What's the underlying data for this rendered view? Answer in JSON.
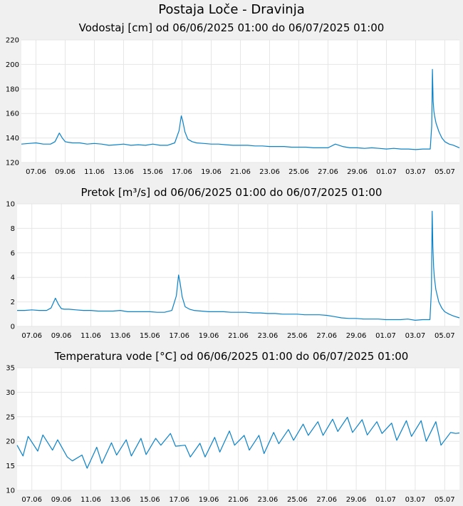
{
  "title": "Postaja Loče - Dravinja",
  "chart_data": [
    {
      "type": "line",
      "title": "Vodostaj [cm] od 06/06/2025 01:00 do 06/07/2025 01:00",
      "x_tick_labels": [
        "07.06",
        "09.06",
        "11.06",
        "13.06",
        "15.06",
        "17.06",
        "19.06",
        "21.06",
        "23.06",
        "25.06",
        "27.06",
        "29.06",
        "01.07",
        "03.07",
        "05.07"
      ],
      "y_ticks": [
        120,
        140,
        160,
        180,
        200,
        220
      ],
      "ylim": [
        120,
        220
      ],
      "xlim": [
        0,
        30
      ],
      "grid": true,
      "color": "#0a82c8",
      "series": [
        {
          "x": [
            0,
            0.5,
            1,
            1.5,
            2,
            2.3,
            2.6,
            2.8,
            3.0,
            3.2,
            3.5,
            4,
            4.5,
            5,
            5.5,
            6,
            6.5,
            7,
            7.5,
            8,
            8.5,
            9,
            9.5,
            10,
            10.5,
            10.8,
            10.95,
            11.05,
            11.2,
            11.4,
            11.7,
            12,
            12.5,
            13,
            13.5,
            14,
            14.5,
            15,
            15.5,
            16,
            16.5,
            17,
            17.5,
            18,
            18.5,
            19,
            19.5,
            20,
            20.5,
            21,
            21.5,
            22,
            22.5,
            23,
            23.5,
            24,
            24.5,
            25,
            25.5,
            26,
            26.5,
            27,
            27.5,
            27.8,
            28,
            28.1,
            28.15,
            28.2,
            28.25,
            28.3,
            28.4,
            28.6,
            28.8,
            29,
            29.3,
            29.6,
            30
          ],
          "y": [
            135,
            135.5,
            136,
            135,
            135,
            137,
            144,
            140,
            137,
            136.5,
            136,
            136,
            135,
            135.5,
            135,
            134,
            134.5,
            135,
            134,
            134.5,
            134,
            135,
            134,
            134,
            136,
            146,
            158,
            154,
            145,
            139,
            137,
            136,
            135.5,
            135,
            135,
            134.5,
            134,
            134,
            134,
            133.5,
            133.5,
            133,
            133,
            133,
            132.5,
            132.5,
            132.5,
            132,
            132,
            132,
            135,
            133,
            132,
            132,
            131.5,
            132,
            131.5,
            131,
            131.5,
            131,
            131,
            130.5,
            131,
            131,
            131,
            150,
            196,
            170,
            162,
            158,
            152,
            145,
            140,
            137,
            135,
            134,
            132
          ]
        }
      ]
    },
    {
      "type": "line",
      "title": "Pretok [m³/s] od 06/06/2025 01:00 do 06/07/2025 01:00",
      "x_tick_labels": [
        "07.06",
        "09.06",
        "11.06",
        "13.06",
        "15.06",
        "17.06",
        "19.06",
        "21.06",
        "23.06",
        "25.06",
        "27.06",
        "29.06",
        "01.07",
        "03.07",
        "05.07"
      ],
      "y_ticks": [
        0,
        2,
        4,
        6,
        8,
        10
      ],
      "ylim": [
        0,
        10
      ],
      "xlim": [
        0,
        30
      ],
      "grid": true,
      "color": "#0a82c8",
      "series": [
        {
          "x": [
            0,
            0.5,
            1,
            1.5,
            2,
            2.3,
            2.6,
            2.8,
            3.0,
            3.2,
            3.5,
            4,
            4.5,
            5,
            5.5,
            6,
            6.5,
            7,
            7.5,
            8,
            8.5,
            9,
            9.5,
            10,
            10.5,
            10.8,
            10.95,
            11.05,
            11.2,
            11.4,
            11.7,
            12,
            12.5,
            13,
            13.5,
            14,
            14.5,
            15,
            15.5,
            16,
            16.5,
            17,
            17.5,
            18,
            18.5,
            19,
            19.5,
            20,
            20.5,
            21,
            21.5,
            22,
            22.5,
            23,
            23.5,
            24,
            24.5,
            25,
            25.5,
            26,
            26.5,
            27,
            27.5,
            27.8,
            28,
            28.1,
            28.15,
            28.2,
            28.25,
            28.3,
            28.4,
            28.6,
            28.8,
            29,
            29.3,
            29.6,
            30
          ],
          "y": [
            1.3,
            1.3,
            1.35,
            1.3,
            1.3,
            1.5,
            2.3,
            1.8,
            1.45,
            1.4,
            1.4,
            1.35,
            1.3,
            1.3,
            1.25,
            1.25,
            1.25,
            1.3,
            1.2,
            1.2,
            1.2,
            1.2,
            1.15,
            1.15,
            1.3,
            2.5,
            4.2,
            3.6,
            2.4,
            1.6,
            1.4,
            1.3,
            1.25,
            1.2,
            1.2,
            1.2,
            1.15,
            1.15,
            1.15,
            1.1,
            1.1,
            1.05,
            1.05,
            1.0,
            1.0,
            1.0,
            0.95,
            0.95,
            0.95,
            0.9,
            0.8,
            0.7,
            0.65,
            0.65,
            0.6,
            0.6,
            0.6,
            0.55,
            0.55,
            0.55,
            0.6,
            0.5,
            0.55,
            0.55,
            0.55,
            3.0,
            9.4,
            6.5,
            4.8,
            4.0,
            3.0,
            2.0,
            1.5,
            1.2,
            1.0,
            0.85,
            0.7
          ]
        }
      ]
    },
    {
      "type": "line",
      "title": "Temperatura vode [°C] od 06/06/2025 01:00 do 06/07/2025 01:00",
      "x_tick_labels": [
        "07.06",
        "09.06",
        "11.06",
        "13.06",
        "15.06",
        "17.06",
        "19.06",
        "21.06",
        "23.06",
        "25.06",
        "27.06",
        "29.06",
        "01.07",
        "03.07",
        "05.07"
      ],
      "y_ticks": [
        10,
        15,
        20,
        25,
        30,
        35
      ],
      "ylim": [
        10,
        35
      ],
      "xlim": [
        0,
        30
      ],
      "grid": true,
      "color": "#0a82c8",
      "series": [
        {
          "x": [
            0,
            0.4,
            0.75,
            1.4,
            1.75,
            2.4,
            2.75,
            3.4,
            3.75,
            4.4,
            4.75,
            5.4,
            5.75,
            6.4,
            6.75,
            7.4,
            7.75,
            8.4,
            8.75,
            9.4,
            9.75,
            10.4,
            10.75,
            11.4,
            11.75,
            12.4,
            12.75,
            13.4,
            13.75,
            14.4,
            14.75,
            15.4,
            15.75,
            16.4,
            16.75,
            17.4,
            17.75,
            18.4,
            18.75,
            19.4,
            19.75,
            20.4,
            20.75,
            21.4,
            21.75,
            22.4,
            22.75,
            23.4,
            23.75,
            24.4,
            24.75,
            25.4,
            25.75,
            26.4,
            26.75,
            27.4,
            27.75,
            28.4,
            28.75,
            29.4,
            29.75,
            30
          ],
          "y": [
            19.2,
            17.0,
            21.0,
            18.0,
            21.3,
            18.2,
            20.3,
            16.8,
            16.0,
            17.2,
            14.5,
            18.8,
            15.5,
            19.7,
            17.2,
            20.3,
            17.0,
            20.6,
            17.3,
            20.6,
            19.2,
            21.6,
            19.0,
            19.2,
            16.8,
            19.6,
            16.8,
            20.8,
            17.8,
            22.1,
            19.2,
            21.2,
            18.2,
            21.2,
            17.5,
            21.8,
            19.5,
            22.4,
            20.2,
            23.5,
            21.2,
            24.0,
            21.2,
            24.5,
            22.0,
            24.9,
            21.8,
            24.4,
            21.3,
            24.0,
            21.6,
            23.7,
            20.2,
            24.2,
            21.0,
            24.2,
            20.0,
            24.0,
            19.2,
            21.8,
            21.6,
            21.7
          ]
        }
      ]
    }
  ]
}
